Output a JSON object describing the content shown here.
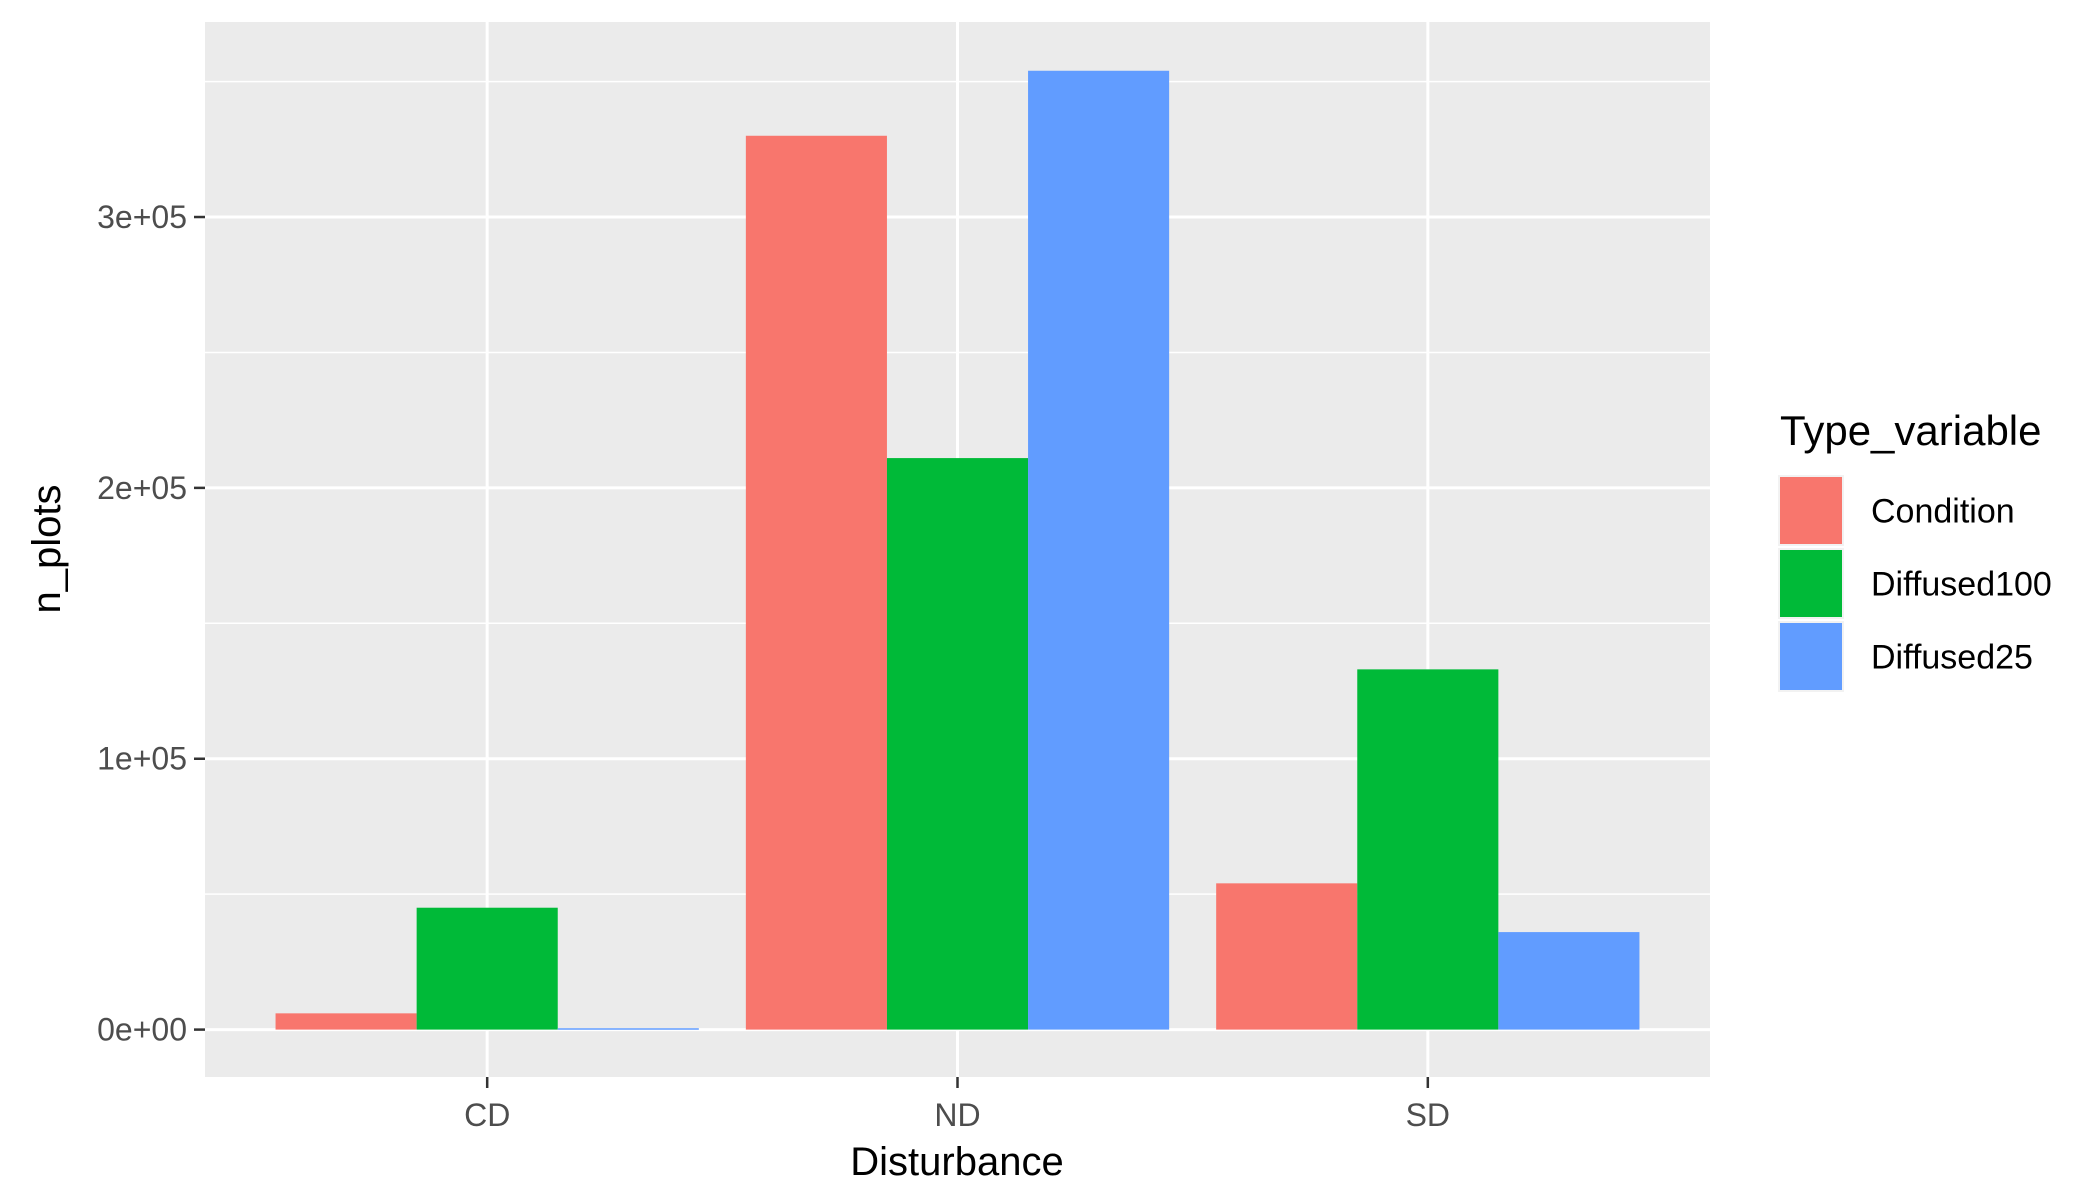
{
  "chart_data": {
    "type": "bar",
    "xlabel": "Disturbance",
    "ylabel": "n_plots",
    "categories": [
      "CD",
      "ND",
      "SD"
    ],
    "series": [
      {
        "name": "Condition",
        "color": "#F8766D",
        "values": [
          6000,
          330000,
          54000
        ]
      },
      {
        "name": "Diffused100",
        "color": "#00BA38",
        "values": [
          45000,
          211000,
          133000
        ]
      },
      {
        "name": "Diffused25",
        "color": "#619CFF",
        "values": [
          500,
          354000,
          36000
        ]
      }
    ],
    "ylim": [
      -17500,
      372000
    ],
    "yticks": [
      0,
      100000,
      200000,
      300000
    ],
    "ytick_labels": [
      "0e+00",
      "1e+05",
      "2e+05",
      "3e+05"
    ],
    "legend": {
      "title": "Type_variable",
      "position": "right"
    },
    "grid": true,
    "panel_background": "#EBEBEB",
    "grid_color": "#FFFFFF"
  }
}
